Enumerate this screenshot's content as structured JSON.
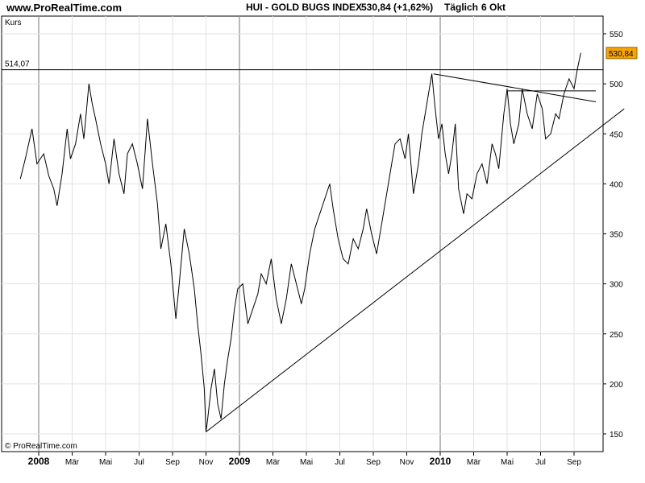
{
  "header": {
    "site": "www.ProRealTime.com",
    "index": "HUI - GOLD BUGS INDEX",
    "change": "530,84 (+1,62%)",
    "period": "Täglich",
    "date": "6 Okt"
  },
  "chart_data": {
    "type": "line",
    "ylabel": "Kurs",
    "ylim": [
      145,
      565
    ],
    "y_ticks": [
      150,
      200,
      250,
      300,
      350,
      400,
      450,
      500,
      550
    ],
    "current_price": 530.84,
    "current_price_label": "530,84",
    "resistance_level": 514.07,
    "resistance_label": "514,07",
    "copyright": "© ProRealTime.com",
    "x_axis": [
      {
        "label": "2008",
        "year": true,
        "t": 0
      },
      {
        "label": "Mär",
        "year": false,
        "t": 2
      },
      {
        "label": "Mai",
        "year": false,
        "t": 4
      },
      {
        "label": "Jul",
        "year": false,
        "t": 6
      },
      {
        "label": "Sep",
        "year": false,
        "t": 8
      },
      {
        "label": "Nov",
        "year": false,
        "t": 10
      },
      {
        "label": "2009",
        "year": true,
        "t": 12
      },
      {
        "label": "Mär",
        "year": false,
        "t": 14
      },
      {
        "label": "Mai",
        "year": false,
        "t": 16
      },
      {
        "label": "Jul",
        "year": false,
        "t": 18
      },
      {
        "label": "Sep",
        "year": false,
        "t": 20
      },
      {
        "label": "Nov",
        "year": false,
        "t": 22
      },
      {
        "label": "2010",
        "year": true,
        "t": 24
      },
      {
        "label": "Mär",
        "year": false,
        "t": 26
      },
      {
        "label": "Mai",
        "year": false,
        "t": 28
      },
      {
        "label": "Jul",
        "year": false,
        "t": 30
      },
      {
        "label": "Sep",
        "year": false,
        "t": 32
      }
    ],
    "series": [
      {
        "values": [
          [
            -1.1,
            405
          ],
          [
            -0.8,
            425
          ],
          [
            -0.4,
            455
          ],
          [
            -0.1,
            420
          ],
          [
            0.3,
            430
          ],
          [
            0.6,
            408
          ],
          [
            0.9,
            395
          ],
          [
            1.1,
            378
          ],
          [
            1.4,
            410
          ],
          [
            1.7,
            455
          ],
          [
            1.9,
            425
          ],
          [
            2.2,
            440
          ],
          [
            2.5,
            470
          ],
          [
            2.7,
            445
          ],
          [
            3.0,
            500
          ],
          [
            3.2,
            480
          ],
          [
            3.4,
            465
          ],
          [
            3.7,
            440
          ],
          [
            4.0,
            420
          ],
          [
            4.2,
            400
          ],
          [
            4.5,
            445
          ],
          [
            4.8,
            410
          ],
          [
            5.1,
            390
          ],
          [
            5.3,
            430
          ],
          [
            5.6,
            440
          ],
          [
            5.9,
            420
          ],
          [
            6.2,
            395
          ],
          [
            6.5,
            465
          ],
          [
            6.8,
            420
          ],
          [
            7.1,
            380
          ],
          [
            7.3,
            335
          ],
          [
            7.6,
            360
          ],
          [
            7.9,
            320
          ],
          [
            8.2,
            265
          ],
          [
            8.4,
            300
          ],
          [
            8.7,
            355
          ],
          [
            9.0,
            330
          ],
          [
            9.3,
            295
          ],
          [
            9.5,
            260
          ],
          [
            9.7,
            230
          ],
          [
            9.9,
            195
          ],
          [
            10.0,
            152
          ],
          [
            10.1,
            165
          ],
          [
            10.3,
            195
          ],
          [
            10.5,
            215
          ],
          [
            10.7,
            180
          ],
          [
            10.9,
            165
          ],
          [
            11.1,
            200
          ],
          [
            11.3,
            225
          ],
          [
            11.5,
            245
          ],
          [
            11.7,
            275
          ],
          [
            11.9,
            295
          ],
          [
            12.2,
            300
          ],
          [
            12.5,
            260
          ],
          [
            12.8,
            275
          ],
          [
            13.1,
            290
          ],
          [
            13.3,
            310
          ],
          [
            13.6,
            300
          ],
          [
            13.9,
            325
          ],
          [
            14.2,
            285
          ],
          [
            14.5,
            260
          ],
          [
            14.8,
            285
          ],
          [
            15.1,
            320
          ],
          [
            15.4,
            300
          ],
          [
            15.7,
            280
          ],
          [
            15.9,
            295
          ],
          [
            16.2,
            330
          ],
          [
            16.5,
            355
          ],
          [
            16.8,
            370
          ],
          [
            17.1,
            385
          ],
          [
            17.4,
            400
          ],
          [
            17.6,
            375
          ],
          [
            17.9,
            345
          ],
          [
            18.2,
            325
          ],
          [
            18.5,
            320
          ],
          [
            18.8,
            345
          ],
          [
            19.1,
            335
          ],
          [
            19.4,
            355
          ],
          [
            19.6,
            375
          ],
          [
            19.9,
            350
          ],
          [
            20.2,
            330
          ],
          [
            20.5,
            360
          ],
          [
            20.8,
            390
          ],
          [
            21.1,
            420
          ],
          [
            21.3,
            440
          ],
          [
            21.6,
            445
          ],
          [
            21.9,
            425
          ],
          [
            22.1,
            450
          ],
          [
            22.4,
            390
          ],
          [
            22.7,
            420
          ],
          [
            22.9,
            450
          ],
          [
            23.2,
            480
          ],
          [
            23.5,
            510
          ],
          [
            23.7,
            475
          ],
          [
            23.9,
            445
          ],
          [
            24.1,
            460
          ],
          [
            24.3,
            430
          ],
          [
            24.5,
            410
          ],
          [
            24.7,
            430
          ],
          [
            24.9,
            460
          ],
          [
            25.1,
            395
          ],
          [
            25.4,
            370
          ],
          [
            25.6,
            390
          ],
          [
            25.9,
            385
          ],
          [
            26.2,
            410
          ],
          [
            26.5,
            420
          ],
          [
            26.8,
            400
          ],
          [
            27.1,
            440
          ],
          [
            27.3,
            430
          ],
          [
            27.5,
            415
          ],
          [
            27.8,
            470
          ],
          [
            28.0,
            495
          ],
          [
            28.2,
            460
          ],
          [
            28.4,
            440
          ],
          [
            28.7,
            460
          ],
          [
            28.9,
            495
          ],
          [
            29.2,
            470
          ],
          [
            29.5,
            455
          ],
          [
            29.8,
            490
          ],
          [
            30.1,
            475
          ],
          [
            30.3,
            445
          ],
          [
            30.6,
            450
          ],
          [
            30.9,
            470
          ],
          [
            31.1,
            465
          ],
          [
            31.4,
            490
          ],
          [
            31.7,
            505
          ],
          [
            32.0,
            495
          ],
          [
            32.2,
            515
          ],
          [
            32.4,
            530.84
          ]
        ]
      }
    ],
    "trendlines": [
      {
        "name": "support",
        "t1": 10.0,
        "v1": 152,
        "t2": 35.0,
        "v2": 475
      },
      {
        "name": "descending-resistance",
        "t1": 23.6,
        "v1": 510,
        "t2": 33.3,
        "v2": 482
      },
      {
        "name": "horizontal-resistance",
        "t1": 28.0,
        "v1": 493,
        "t2": 33.3,
        "v2": 493
      }
    ]
  }
}
